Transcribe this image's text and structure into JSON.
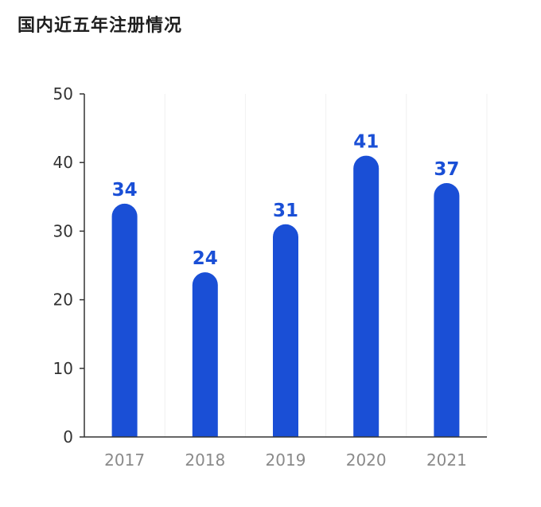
{
  "chart_data": {
    "type": "bar",
    "title": "国内近五年注册情况",
    "categories": [
      "2017",
      "2018",
      "2019",
      "2020",
      "2021"
    ],
    "values": [
      34,
      24,
      31,
      41,
      37
    ],
    "ylim": [
      0,
      50
    ],
    "yticks": [
      0,
      10,
      20,
      30,
      40,
      50
    ],
    "grid": "vertical-separators",
    "legend": "none",
    "data_labels": true,
    "colors": {
      "bar": "#1a4fd6",
      "data_label": "#1a4fd6",
      "axis": "#333333",
      "separator": "#f0f0f0"
    }
  }
}
